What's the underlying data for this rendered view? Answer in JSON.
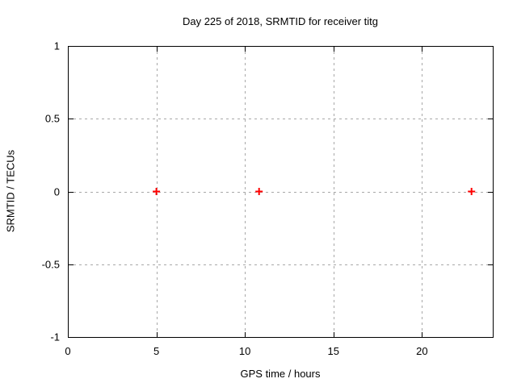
{
  "chart_data": {
    "type": "scatter",
    "title": "Day 225 of 2018, SRMTID for receiver titg",
    "xlabel": "GPS time / hours",
    "ylabel": "SRMTID / TECUs",
    "xlim": [
      0,
      24
    ],
    "ylim": [
      -1,
      1
    ],
    "xticks": [
      0,
      5,
      10,
      15,
      20
    ],
    "xtick_labels": [
      "0",
      "5",
      "10",
      "15",
      "20"
    ],
    "yticks": [
      -1,
      -0.5,
      0,
      0.5,
      1
    ],
    "ytick_labels": [
      "-1",
      "-0.5",
      "0",
      "0.5",
      "1"
    ],
    "grid": true,
    "grid_style": "dashed",
    "legend": "none",
    "series": [
      {
        "name": "SRMTID",
        "marker": "plus",
        "color": "#ff0000",
        "points": [
          [
            5.0,
            0.0
          ],
          [
            10.8,
            0.0
          ],
          [
            22.8,
            0.0
          ]
        ]
      }
    ],
    "colors": {
      "background": "#ffffff",
      "border": "#000000",
      "grid": "#a8a8a8",
      "text": "#000000"
    }
  }
}
